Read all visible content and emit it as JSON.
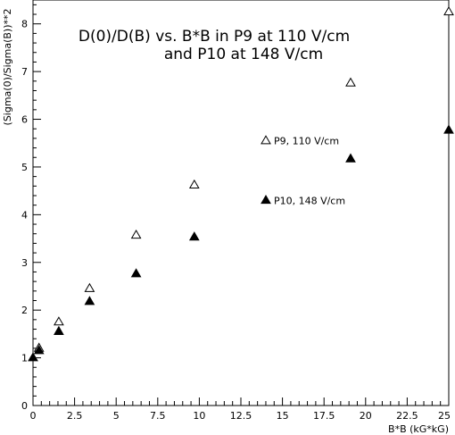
{
  "chart_data": {
    "type": "scatter",
    "title_lines": [
      "D(0)/D(B) vs. B*B in P9 at 110 V/cm",
      "and P10 at 148 V/cm"
    ],
    "xlabel": "B*B (kG*kG)",
    "ylabel": "(Sigma(0)/Sigma(B))**2",
    "xlim": [
      0,
      25
    ],
    "ylim": [
      0,
      8.5
    ],
    "x_ticks": [
      "0",
      "2.5",
      "5",
      "7.5",
      "10",
      "12.5",
      "15",
      "17.5",
      "20",
      "22.5",
      "25"
    ],
    "y_ticks": [
      "0",
      "1",
      "2",
      "3",
      "4",
      "5",
      "6",
      "7",
      "8"
    ],
    "grid": false,
    "series": [
      {
        "name": "P9, 110 V/cm",
        "marker": "open-triangle",
        "color": "#000000",
        "points": [
          {
            "x": 0.36,
            "y": 1.2
          },
          {
            "x": 1.55,
            "y": 1.75
          },
          {
            "x": 3.4,
            "y": 2.45
          },
          {
            "x": 6.2,
            "y": 3.57
          },
          {
            "x": 9.7,
            "y": 4.62
          },
          {
            "x": 19.1,
            "y": 6.76
          },
          {
            "x": 25.0,
            "y": 8.25
          }
        ]
      },
      {
        "name": "P10, 148 V/cm",
        "marker": "filled-triangle",
        "color": "#000000",
        "points": [
          {
            "x": 0.0,
            "y": 1.0
          },
          {
            "x": 0.36,
            "y": 1.15
          },
          {
            "x": 1.55,
            "y": 1.55
          },
          {
            "x": 3.4,
            "y": 2.18
          },
          {
            "x": 6.2,
            "y": 2.76
          },
          {
            "x": 9.7,
            "y": 3.53
          },
          {
            "x": 19.1,
            "y": 5.17
          },
          {
            "x": 25.0,
            "y": 5.77
          }
        ]
      }
    ],
    "legend": [
      {
        "label": "P9, 110 V/cm",
        "marker": "open-triangle",
        "anchor": {
          "x": 14.0,
          "y": 5.55
        }
      },
      {
        "label": "P10, 148 V/cm",
        "marker": "filled-triangle",
        "anchor": {
          "x": 14.0,
          "y": 4.3
        }
      }
    ]
  }
}
